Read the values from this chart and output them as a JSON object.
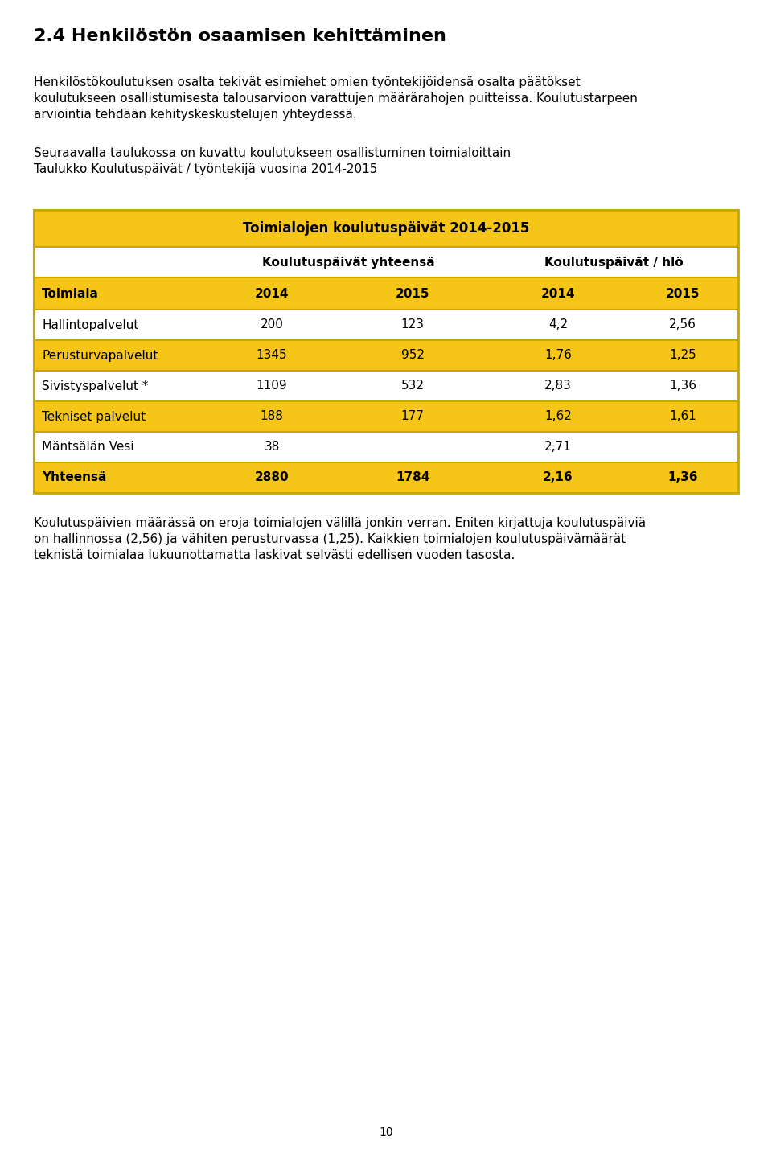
{
  "title": "2.4 Henkilöstön osaamisen kehittäminen",
  "para1_lines": [
    "Henkilöstökoulutuksen osalta tekivät esimiehet omien työntekijöidensä osalta päätökset",
    "koulutukseen osallistumisesta talousarvioon varattujen määrärahojen puitteissa. Koulutustarpeen",
    "arviointia tehdään kehityskeskustelujen yhteydessä."
  ],
  "para2_lines": [
    "Seuraavalla taulukossa on kuvattu koulutukseen osallistuminen toimialoittain",
    "Taulukko Koulutuspäivät / työntekijä vuosina 2014-2015"
  ],
  "table_title": "Toimialojen koulutuspäivät 2014-2015",
  "col_group1": "Koulutuspäivät yhteensä",
  "col_group2": "Koulutuspäivät / hlö",
  "header_row": [
    "Toimiala",
    "2014",
    "2015",
    "2014",
    "2015"
  ],
  "rows": [
    {
      "name": "Hallintopalvelut",
      "vals": [
        "200",
        "123",
        "4,2",
        "2,56"
      ],
      "highlight": false,
      "bold": false
    },
    {
      "name": "Perusturvapalvelut",
      "vals": [
        "1345",
        "952",
        "1,76",
        "1,25"
      ],
      "highlight": true,
      "bold": false
    },
    {
      "name": "Sivistyspalvelut *",
      "vals": [
        "1109",
        "532",
        "2,83",
        "1,36"
      ],
      "highlight": false,
      "bold": false
    },
    {
      "name": "Tekniset palvelut",
      "vals": [
        "188",
        "177",
        "1,62",
        "1,61"
      ],
      "highlight": true,
      "bold": false
    },
    {
      "name": "Mäntsälän Vesi",
      "vals": [
        "38",
        "",
        "2,71",
        ""
      ],
      "highlight": false,
      "bold": false
    },
    {
      "name": "Yhteensä",
      "vals": [
        "2880",
        "1784",
        "2,16",
        "1,36"
      ],
      "highlight": true,
      "bold": true
    }
  ],
  "para3_lines": [
    "Koulutuspäivien määrässä on eroja toimialojen välillä jonkin verran. Eniten kirjattuja koulutuspäiviä",
    "on hallinnossa (2,56) ja vähiten perusturvassa (1,25). Kaikkien toimialojen koulutuspäivämäärät",
    "teknistä toimialaa lukuunottamatta laskivat selvästi edellisen vuoden tasosta."
  ],
  "page_num": "10",
  "yellow": "#F5C518",
  "white": "#FFFFFF",
  "border_color": "#C8A800",
  "text_color": "#1A1A1A",
  "title_fontsize": 16,
  "body_fontsize": 11,
  "table_title_fontsize": 12,
  "table_body_fontsize": 11
}
